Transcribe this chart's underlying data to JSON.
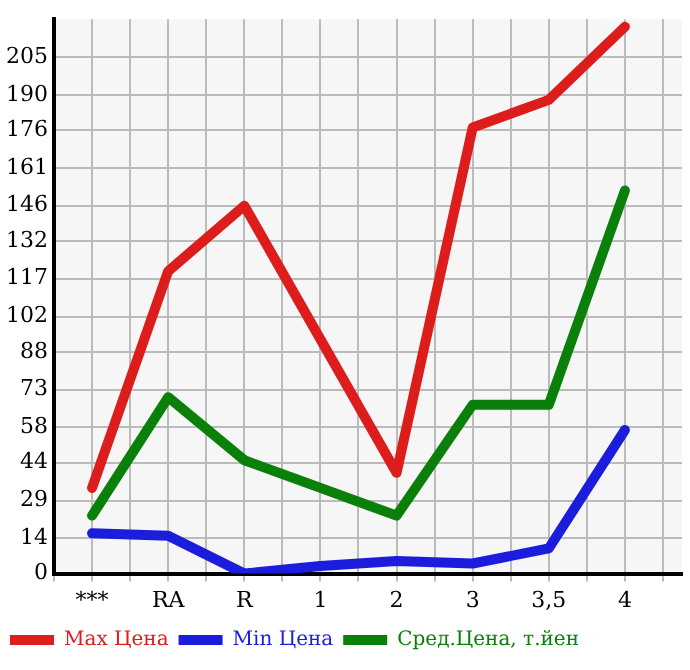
{
  "chart_data": {
    "type": "line",
    "categories": [
      "***",
      "RA",
      "R",
      "1",
      "2",
      "3",
      "3,5",
      "4"
    ],
    "series": [
      {
        "name": "Max Цена",
        "color": "#dd1c1c",
        "values": [
          34,
          120,
          146,
          93,
          40,
          177,
          188,
          217
        ]
      },
      {
        "name": "Min Цена",
        "color": "#1c1cdd",
        "values": [
          16,
          15,
          0,
          3,
          5,
          4,
          10,
          57
        ]
      },
      {
        "name": "Сред.Цена, т.йен",
        "color": "#0a800a",
        "values": [
          23,
          70,
          45,
          34,
          23,
          67,
          67,
          152
        ]
      }
    ],
    "ylim": [
      0,
      220
    ],
    "yticks": [
      0,
      14,
      29,
      44,
      58,
      73,
      88,
      102,
      117,
      132,
      146,
      161,
      176,
      190,
      205
    ],
    "grid": true,
    "legend": "bottom",
    "marker": "none",
    "line_style": "solid"
  }
}
